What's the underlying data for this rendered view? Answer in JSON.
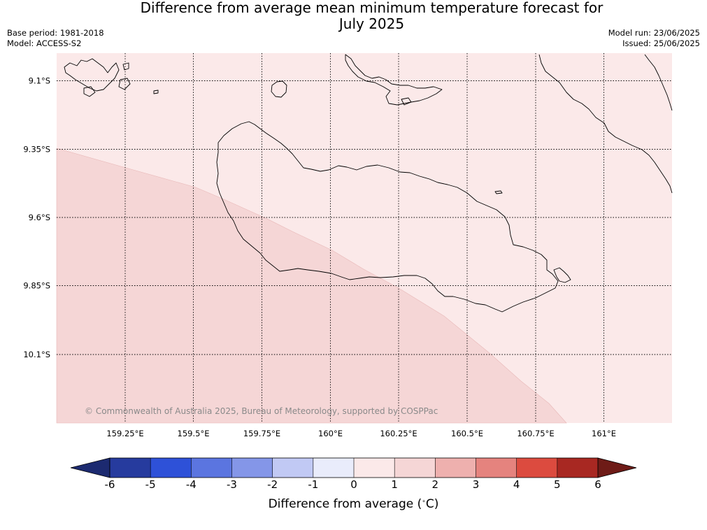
{
  "header": {
    "title_line1": "Difference from average mean minimum temperature forecast for",
    "title_line2": "July 2025",
    "base_period": "Base period: 1981-2018",
    "model": "Model: ACCESS-S2",
    "model_run": "Model run: 23/06/2025",
    "issued": "Issued: 25/06/2025"
  },
  "map": {
    "lat_labels": [
      "9.1°S",
      "9.35°S",
      "9.6°S",
      "9.85°S",
      "10.1°S"
    ],
    "lon_labels": [
      "159.25°E",
      "159.5°E",
      "159.75°E",
      "160°E",
      "160.25°E",
      "160.5°E",
      "160.75°E",
      "161°E"
    ],
    "copyright": "© Commonwealth of Australia 2025, Bureau of Meteorology, supported by COSPPac",
    "regions": [
      {
        "category": "0 to 1",
        "color": "#fbe9e9"
      },
      {
        "category": "1 to 2",
        "color": "#f5d6d6"
      }
    ]
  },
  "colorbar": {
    "tick_labels": [
      "-6",
      "-5",
      "-4",
      "-3",
      "-2",
      "-1",
      "0",
      "1",
      "2",
      "3",
      "4",
      "5",
      "6"
    ],
    "colors": [
      "#263b9e",
      "#2e51d8",
      "#5b75e0",
      "#8496e8",
      "#c1c9f4",
      "#e9ecfb",
      "#fbe9e9",
      "#f5d6d6",
      "#eeb0ae",
      "#e5837e",
      "#dc4b3f",
      "#a82822"
    ],
    "under_color": "#1c2a70",
    "over_color": "#6e1b17",
    "label": "Difference from average (",
    "label_unit": "C)"
  }
}
